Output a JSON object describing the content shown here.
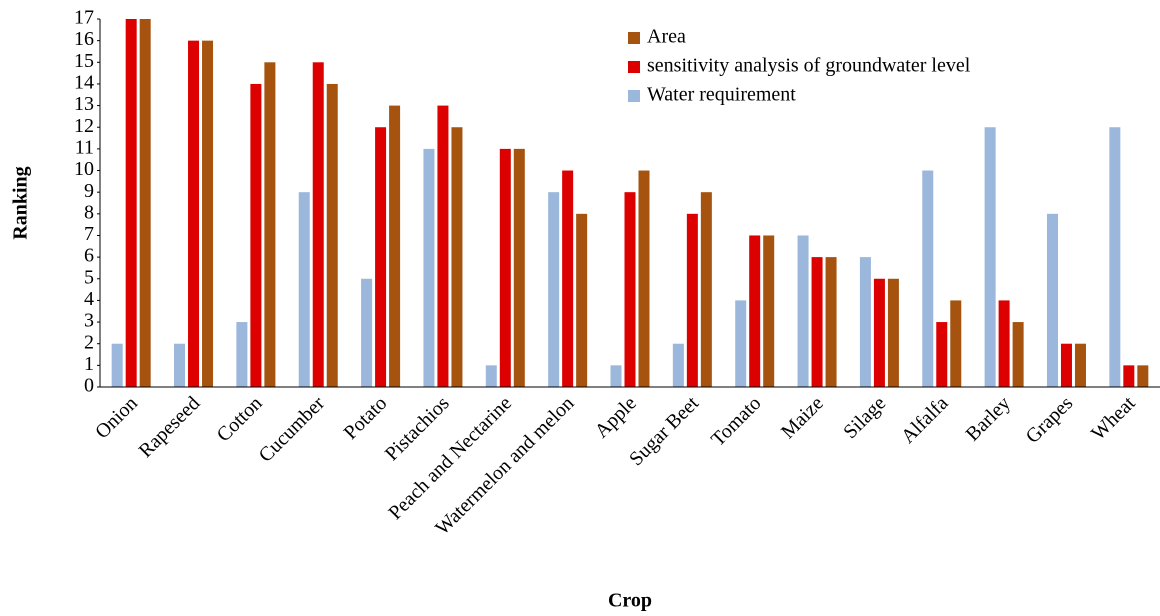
{
  "chart_data": {
    "type": "bar",
    "x_label": "Crop",
    "y_label": "Ranking",
    "categories": [
      "Onion",
      "Rapeseed",
      "Cotton",
      "Cucumber",
      "Potato",
      "Pistachios",
      "Peach and Nectarine",
      "Watermelon and melon",
      "Apple",
      "Sugar Beet",
      "Tomato",
      "Maize",
      "Silage",
      "Alfalfa",
      "Barley",
      "Grapes",
      "Wheat"
    ],
    "series": [
      {
        "name": "Water requirement",
        "color": "#9bb7dc",
        "values": [
          2,
          2,
          3,
          9,
          5,
          11,
          1,
          9,
          1,
          2,
          4,
          7,
          6,
          10,
          12,
          8,
          12
        ]
      },
      {
        "name": "sensitivity analysis of groundwater level",
        "color": "#dc0000",
        "values": [
          17,
          16,
          14,
          15,
          12,
          13,
          11,
          10,
          9,
          8,
          7,
          6,
          5,
          3,
          4,
          2,
          1
        ]
      },
      {
        "name": "Area",
        "color": "#a5530f",
        "values": [
          17,
          16,
          15,
          14,
          13,
          12,
          11,
          8,
          10,
          9,
          7,
          6,
          5,
          4,
          3,
          2,
          1
        ]
      }
    ],
    "ylim": [
      0,
      17
    ],
    "yticks": [
      0,
      1,
      2,
      3,
      4,
      5,
      6,
      7,
      8,
      9,
      10,
      11,
      12,
      13,
      14,
      15,
      16,
      17
    ],
    "grid": false
  }
}
